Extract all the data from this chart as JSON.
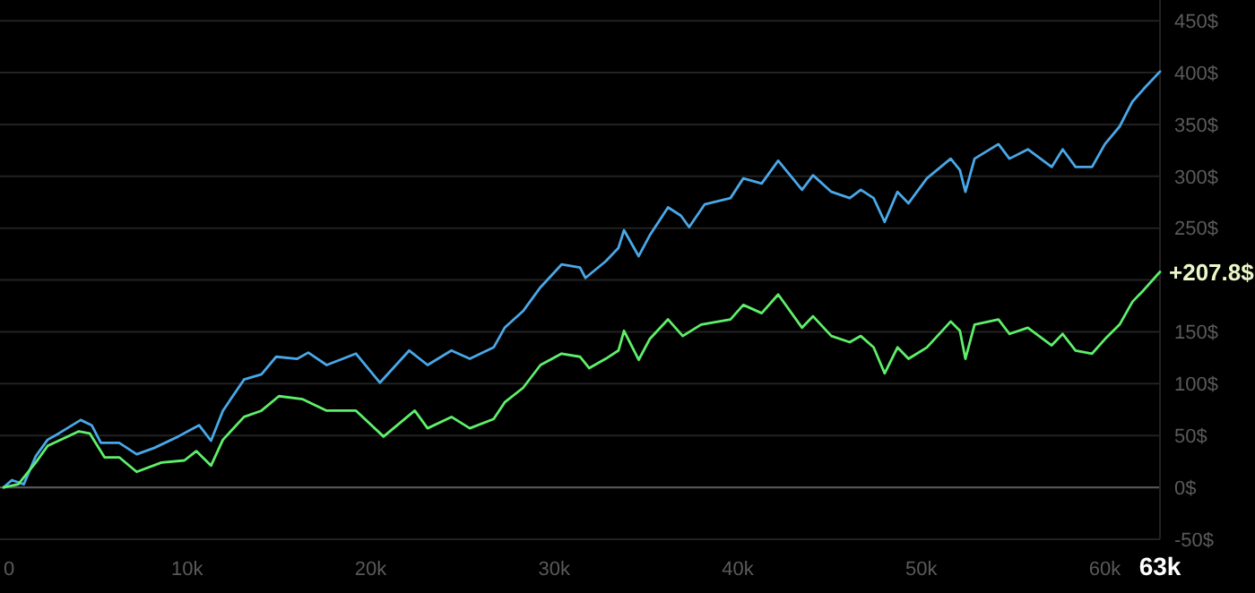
{
  "chart_data": {
    "type": "line",
    "x": [
      0,
      450,
      1100,
      1750,
      2400,
      3000,
      4200,
      4800,
      5300,
      6300,
      7250,
      8200,
      9500,
      10650,
      11300,
      11950,
      13100,
      14050,
      14850,
      16000,
      16600,
      17600,
      19200,
      20500,
      22100,
      23100,
      24400,
      25400,
      26700,
      27300,
      28300,
      29250,
      30400,
      31400,
      31700,
      32800,
      33500,
      33800,
      34600,
      35200,
      36200,
      36900,
      37350,
      38200,
      39600,
      40300,
      41300,
      42200,
      43500,
      44100,
      45100,
      46100,
      46700,
      47400,
      48000,
      48700,
      49300,
      50300,
      51600,
      52100,
      52400,
      52900,
      54200,
      54800,
      55800,
      57100,
      57700,
      58400,
      59300,
      60000,
      60800,
      61500,
      62100,
      63000
    ],
    "series": [
      {
        "color": "#4aa8e8",
        "values": [
          0,
          7,
          3,
          30,
          46,
          52,
          65,
          60,
          43,
          43,
          32,
          38,
          49,
          60,
          45,
          74,
          104,
          109,
          126,
          124,
          130,
          118,
          129,
          101,
          132,
          118,
          132,
          124,
          135,
          154,
          170,
          193,
          215,
          212,
          202,
          218,
          231,
          248,
          223,
          243,
          270,
          262,
          251,
          273,
          279,
          298,
          293,
          315,
          287,
          301,
          285,
          279,
          287,
          279,
          256,
          285,
          274,
          298,
          317,
          306,
          285,
          317,
          331,
          317,
          326,
          309,
          326,
          309,
          309,
          331,
          348,
          372,
          384,
          401
        ]
      },
      {
        "color": "#5ef06a",
        "x": [
          0,
          800,
          1250,
          1750,
          2400,
          4100,
          4700,
          5500,
          6300,
          7250,
          8600,
          9850,
          10500,
          11300,
          11950,
          13100,
          14050,
          15000,
          16300,
          17600,
          19200,
          20700,
          22400,
          23100,
          24400,
          25400,
          26700,
          27300,
          28300,
          29250,
          30400,
          31400,
          31900,
          32800,
          33500,
          33800,
          34600,
          35200,
          36200,
          37000,
          38000,
          39600,
          40300,
          41300,
          42200,
          43500,
          44100,
          45100,
          46100,
          46700,
          47400,
          48000,
          48700,
          49300,
          50300,
          51600,
          52100,
          52400,
          52900,
          54200,
          54800,
          55800,
          57100,
          57700,
          58400,
          59300,
          60000,
          60800,
          61500,
          62100,
          63000
        ],
        "values": [
          0,
          3,
          13,
          24,
          40,
          54,
          52,
          29,
          29,
          15,
          24,
          26,
          35,
          21,
          46,
          68,
          74,
          88,
          85,
          74,
          74,
          49,
          74,
          57,
          68,
          57,
          66,
          82,
          96,
          118,
          129,
          126,
          115,
          124,
          132,
          151,
          123,
          143,
          162,
          146,
          157,
          162,
          176,
          168,
          186,
          154,
          165,
          146,
          140,
          146,
          135,
          110,
          135,
          124,
          135,
          160,
          151,
          124,
          157,
          162,
          148,
          154,
          137,
          148,
          132,
          129,
          143,
          157,
          179,
          190,
          207.8
        ]
      }
    ],
    "xlim": [
      0,
      63000
    ],
    "xticks": [
      0,
      {
        "value": 10000,
        "label": "10k"
      },
      {
        "value": 20000,
        "label": "20k"
      },
      {
        "value": 30000,
        "label": "30k"
      },
      {
        "value": 40000,
        "label": "40k"
      },
      {
        "value": 50000,
        "label": "50k"
      },
      {
        "value": 60000,
        "label": "60k"
      },
      {
        "value": 63000,
        "label": "63k"
      }
    ],
    "ylim": [
      -50,
      470
    ],
    "yticks": [
      {
        "value": -50,
        "label": "-50$"
      },
      {
        "value": 0,
        "label": "0$"
      },
      {
        "value": 50,
        "label": "50$"
      },
      {
        "value": 100,
        "label": "100$"
      },
      {
        "value": 150,
        "label": "150$"
      },
      {
        "value": 200,
        "label": null
      },
      {
        "value": 250,
        "label": "250$"
      },
      {
        "value": 300,
        "label": "300$"
      },
      {
        "value": 350,
        "label": "350$"
      },
      {
        "value": 400,
        "label": "400$"
      },
      {
        "value": 450,
        "label": "450$"
      }
    ],
    "grid": "y",
    "ref_lines": [
      {
        "axis": "y",
        "value": 0,
        "color": "#555555"
      }
    ],
    "annotations": [
      {
        "text": "+207.8$",
        "x": 63000,
        "y": 207.8
      }
    ]
  }
}
